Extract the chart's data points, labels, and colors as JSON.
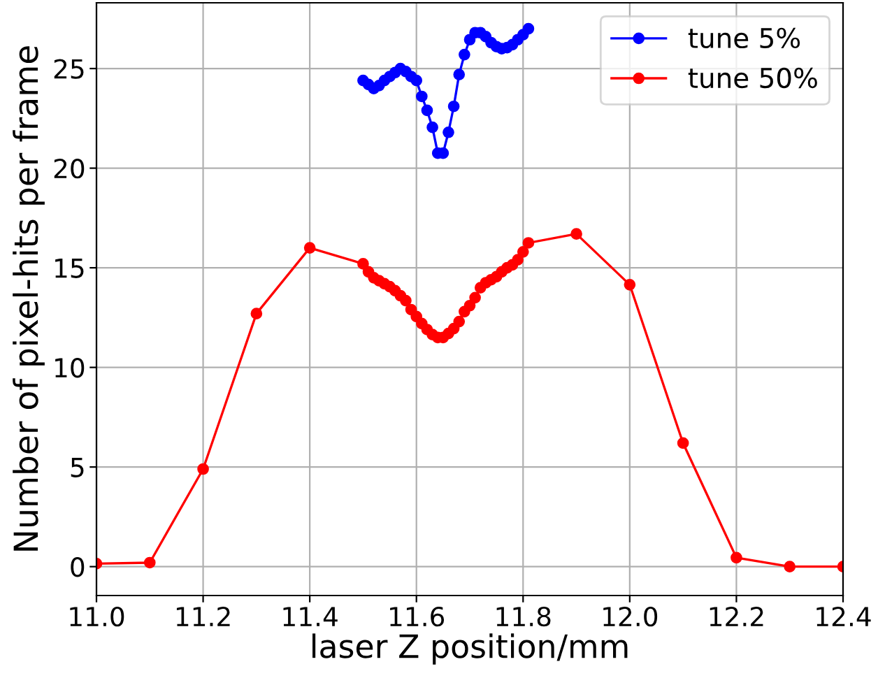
{
  "chart_data": {
    "type": "line",
    "xlabel": "laser Z position/mm",
    "ylabel": "Number of pixel-hits per frame",
    "series": [
      {
        "name": "tune 5%",
        "color": "#0000ff",
        "x": [
          11.5,
          11.51,
          11.52,
          11.53,
          11.54,
          11.55,
          11.56,
          11.57,
          11.58,
          11.59,
          11.6,
          11.61,
          11.62,
          11.63,
          11.64,
          11.65,
          11.66,
          11.67,
          11.68,
          11.69,
          11.7,
          11.71,
          11.72,
          11.73,
          11.74,
          11.75,
          11.76,
          11.77,
          11.78,
          11.79,
          11.8,
          11.81
        ],
        "values": [
          24.4,
          24.2,
          24.0,
          24.15,
          24.4,
          24.6,
          24.8,
          25.0,
          24.85,
          24.6,
          24.4,
          23.6,
          22.9,
          22.05,
          20.75,
          20.75,
          21.8,
          23.1,
          24.7,
          25.7,
          26.45,
          26.8,
          26.8,
          26.6,
          26.3,
          26.1,
          26.0,
          26.05,
          26.2,
          26.45,
          26.7,
          27.0
        ]
      },
      {
        "name": "tune 50%",
        "color": "#ff0000",
        "x": [
          11.0,
          11.1,
          11.2,
          11.3,
          11.4,
          11.5,
          11.51,
          11.52,
          11.53,
          11.54,
          11.55,
          11.56,
          11.57,
          11.58,
          11.59,
          11.6,
          11.61,
          11.62,
          11.63,
          11.64,
          11.65,
          11.66,
          11.67,
          11.68,
          11.69,
          11.7,
          11.71,
          11.72,
          11.73,
          11.74,
          11.75,
          11.76,
          11.77,
          11.78,
          11.79,
          11.8,
          11.81,
          11.9,
          12.0,
          12.1,
          12.2,
          12.3,
          12.4
        ],
        "values": [
          0.15,
          0.2,
          4.9,
          12.7,
          16.0,
          15.2,
          14.8,
          14.5,
          14.35,
          14.2,
          14.05,
          13.85,
          13.6,
          13.35,
          12.9,
          12.55,
          12.2,
          11.9,
          11.65,
          11.5,
          11.5,
          11.7,
          11.95,
          12.3,
          12.8,
          13.1,
          13.5,
          14.0,
          14.25,
          14.4,
          14.55,
          14.8,
          15.0,
          15.15,
          15.4,
          15.8,
          16.25,
          16.7,
          14.15,
          6.2,
          0.45,
          0.0,
          0.0
        ]
      }
    ],
    "xlim": [
      11.0,
      12.4
    ],
    "xticks": [
      {
        "value": 11.0,
        "label": "11.0"
      },
      {
        "value": 11.2,
        "label": "11.2"
      },
      {
        "value": 11.4,
        "label": "11.4"
      },
      {
        "value": 11.6,
        "label": "11.6"
      },
      {
        "value": 11.8,
        "label": "11.8"
      },
      {
        "value": 12.0,
        "label": "12.0"
      },
      {
        "value": 12.2,
        "label": "12.2"
      },
      {
        "value": 12.4,
        "label": "12.4"
      }
    ],
    "ylim": [
      -1.45,
      28.3
    ],
    "yticks": [
      0,
      5,
      10,
      15,
      20,
      25
    ],
    "grid": true,
    "legend": "top right",
    "marker": "circle",
    "line_style": "solid"
  }
}
